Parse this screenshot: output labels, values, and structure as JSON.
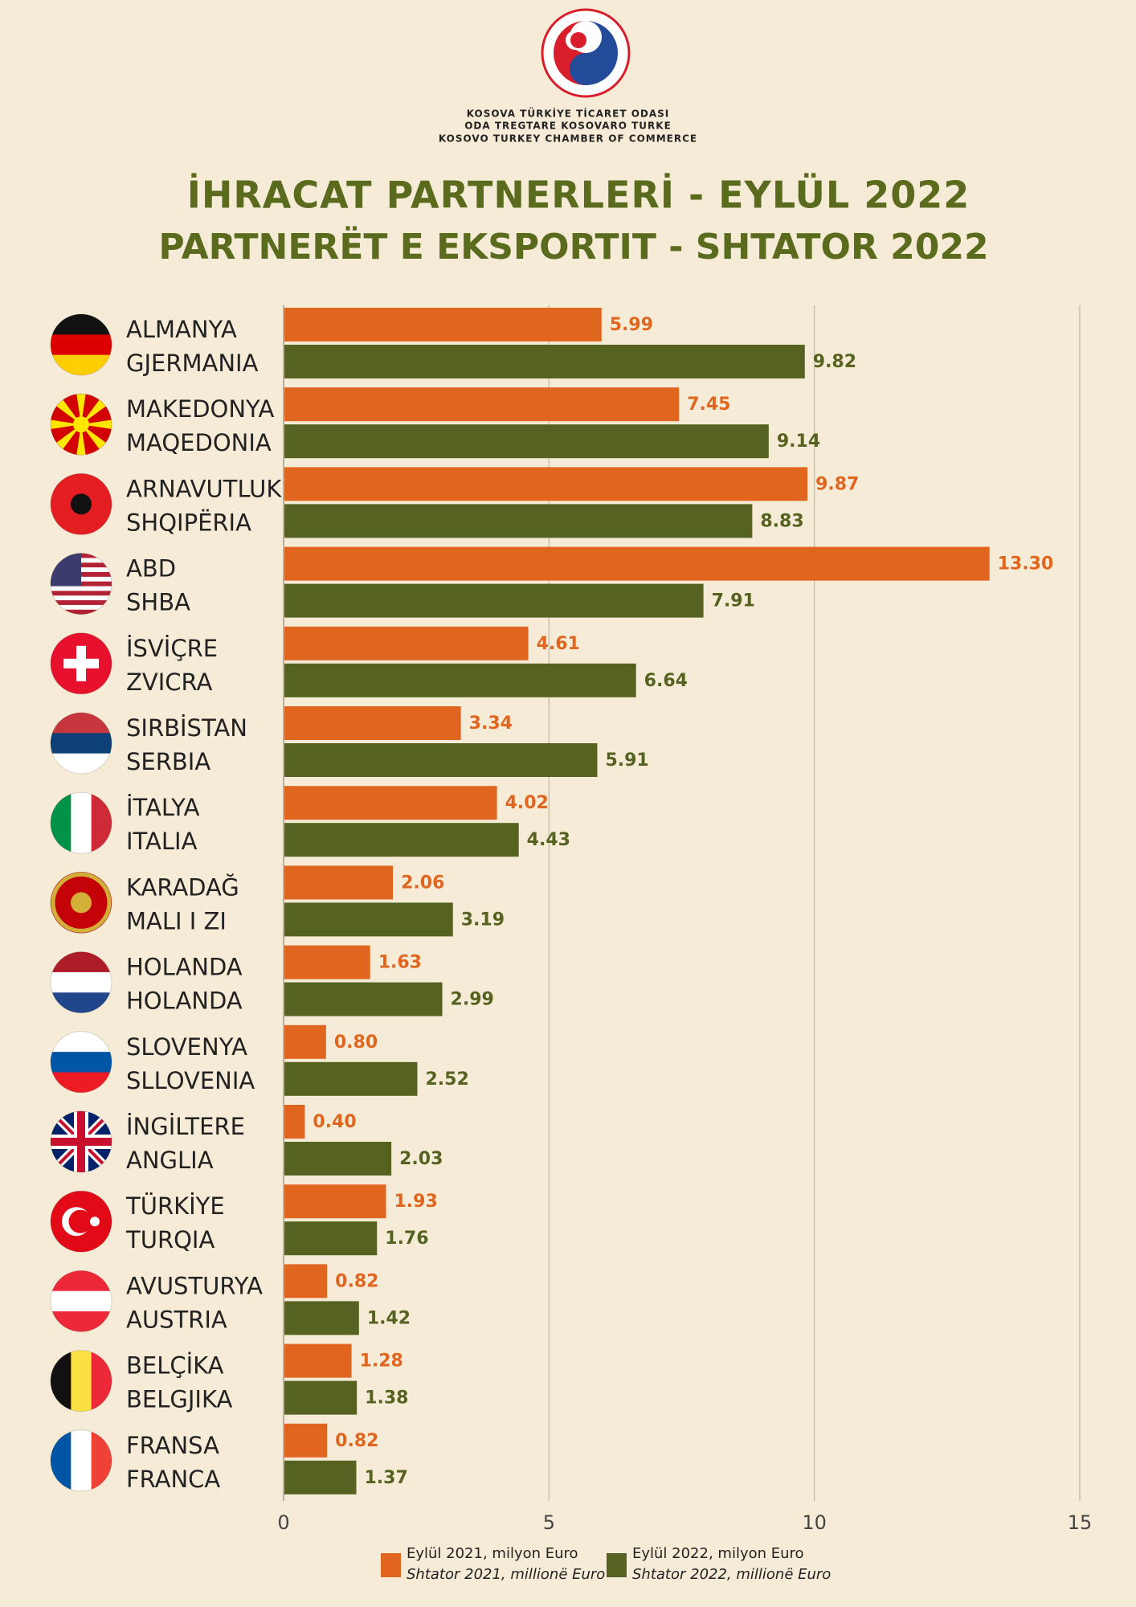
{
  "header": {
    "lines": [
      "KOSOVA TÜRKİYE TİCARET ODASI",
      "ODA TREGTARE KOSOVARO TURKE",
      "KOSOVO TURKEY CHAMBER OF COMMERCE"
    ]
  },
  "chart_data": {
    "type": "barh",
    "title": "İHRACAT PARTNERLERİ - EYLÜL 2022",
    "subtitle": "PARTNERËT E EKSPORTIT - SHTATOR 2022",
    "categories": [
      [
        "ALMANYA",
        "GJERMANIA"
      ],
      [
        "MAKEDONYA",
        "MAQEDONIA"
      ],
      [
        "ARNAVUTLUK",
        "SHQIPËRIA"
      ],
      [
        "ABD",
        "SHBA"
      ],
      [
        "İSVİÇRE",
        "ZVICRA"
      ],
      [
        "SIRBİSTAN",
        "SERBIA"
      ],
      [
        "İTALYA",
        "ITALIA"
      ],
      [
        "KARADAĞ",
        "MALI I ZI"
      ],
      [
        "HOLANDA",
        "HOLANDA"
      ],
      [
        "SLOVENYA",
        "SLLOVENIA"
      ],
      [
        "İNGİLTERE",
        "ANGLIA"
      ],
      [
        "TÜRKİYE",
        "TURQIA"
      ],
      [
        "AVUSTURYA",
        "AUSTRIA"
      ],
      [
        "BELÇİKA",
        "BELGJIKA"
      ],
      [
        "FRANSA",
        "FRANCA"
      ]
    ],
    "series": [
      {
        "name": "Eylül  2021, milyon Euro",
        "name_alt": "Shtator 2021, millionë Euro",
        "color": "#e0661f",
        "values": [
          5.99,
          7.45,
          9.87,
          13.3,
          4.61,
          3.34,
          4.02,
          2.06,
          1.63,
          0.8,
          0.4,
          1.93,
          0.82,
          1.28,
          0.82
        ],
        "value_labels": [
          "5.99",
          "7.45",
          "9.87",
          "13.30",
          "4.61",
          "3.34",
          "4.02",
          "2.06",
          "1.63",
          "0.80",
          "0.40",
          "1.93",
          "0.82",
          "1.28",
          "0.82"
        ]
      },
      {
        "name": "Eylül 2022, milyon Euro",
        "name_alt": "Shtator 2022, millionë Euro",
        "color": "#566320",
        "values": [
          9.82,
          9.14,
          8.83,
          7.91,
          6.64,
          5.91,
          4.43,
          3.19,
          2.99,
          2.52,
          2.03,
          1.76,
          1.42,
          1.38,
          1.37
        ],
        "value_labels": [
          "9.82",
          "9.14",
          "8.83",
          "7.91",
          "6.64",
          "5.91",
          "4.43",
          "3.19",
          "2.99",
          "2.52",
          "2.03",
          "1.76",
          "1.42",
          "1.38",
          "1.37"
        ]
      }
    ],
    "xlim": [
      0,
      15
    ],
    "xticks": [
      0,
      5,
      10,
      15
    ],
    "grid": true
  }
}
